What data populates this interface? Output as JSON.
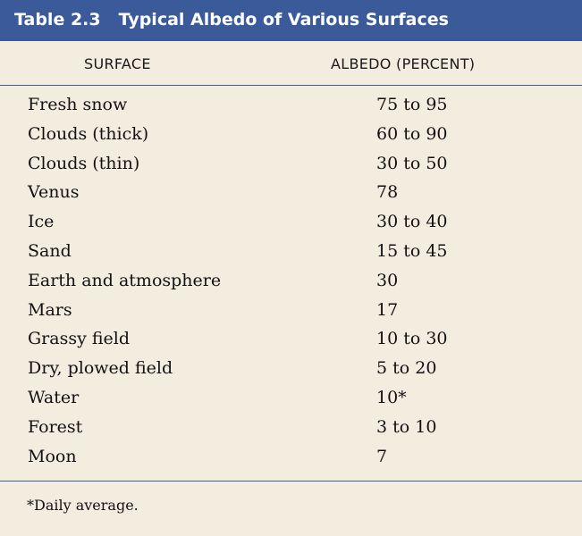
{
  "table": {
    "number": "Table 2.3",
    "title": "Typical Albedo of Various Surfaces",
    "columns": {
      "surface": "SURFACE",
      "albedo": "ALBEDO (PERCENT)"
    },
    "rows": [
      {
        "surface": "Fresh snow",
        "albedo": "75 to 95"
      },
      {
        "surface": "Clouds (thick)",
        "albedo": "60 to 90"
      },
      {
        "surface": "Clouds (thin)",
        "albedo": "30 to 50"
      },
      {
        "surface": "Venus",
        "albedo": "78"
      },
      {
        "surface": "Ice",
        "albedo": "30 to 40"
      },
      {
        "surface": "Sand",
        "albedo": "15 to 45"
      },
      {
        "surface": "Earth and atmosphere",
        "albedo": "30"
      },
      {
        "surface": "Mars",
        "albedo": "17"
      },
      {
        "surface": "Grassy field",
        "albedo": "10 to 30"
      },
      {
        "surface": "Dry, plowed field",
        "albedo": "5 to 20"
      },
      {
        "surface": "Water",
        "albedo": "10*"
      },
      {
        "surface": "Forest",
        "albedo": "3 to 10"
      },
      {
        "surface": "Moon",
        "albedo": "7"
      }
    ],
    "footnote": "*Daily average."
  },
  "colors": {
    "header_bg": "#3a5a99",
    "page_bg": "#f3ede0"
  }
}
